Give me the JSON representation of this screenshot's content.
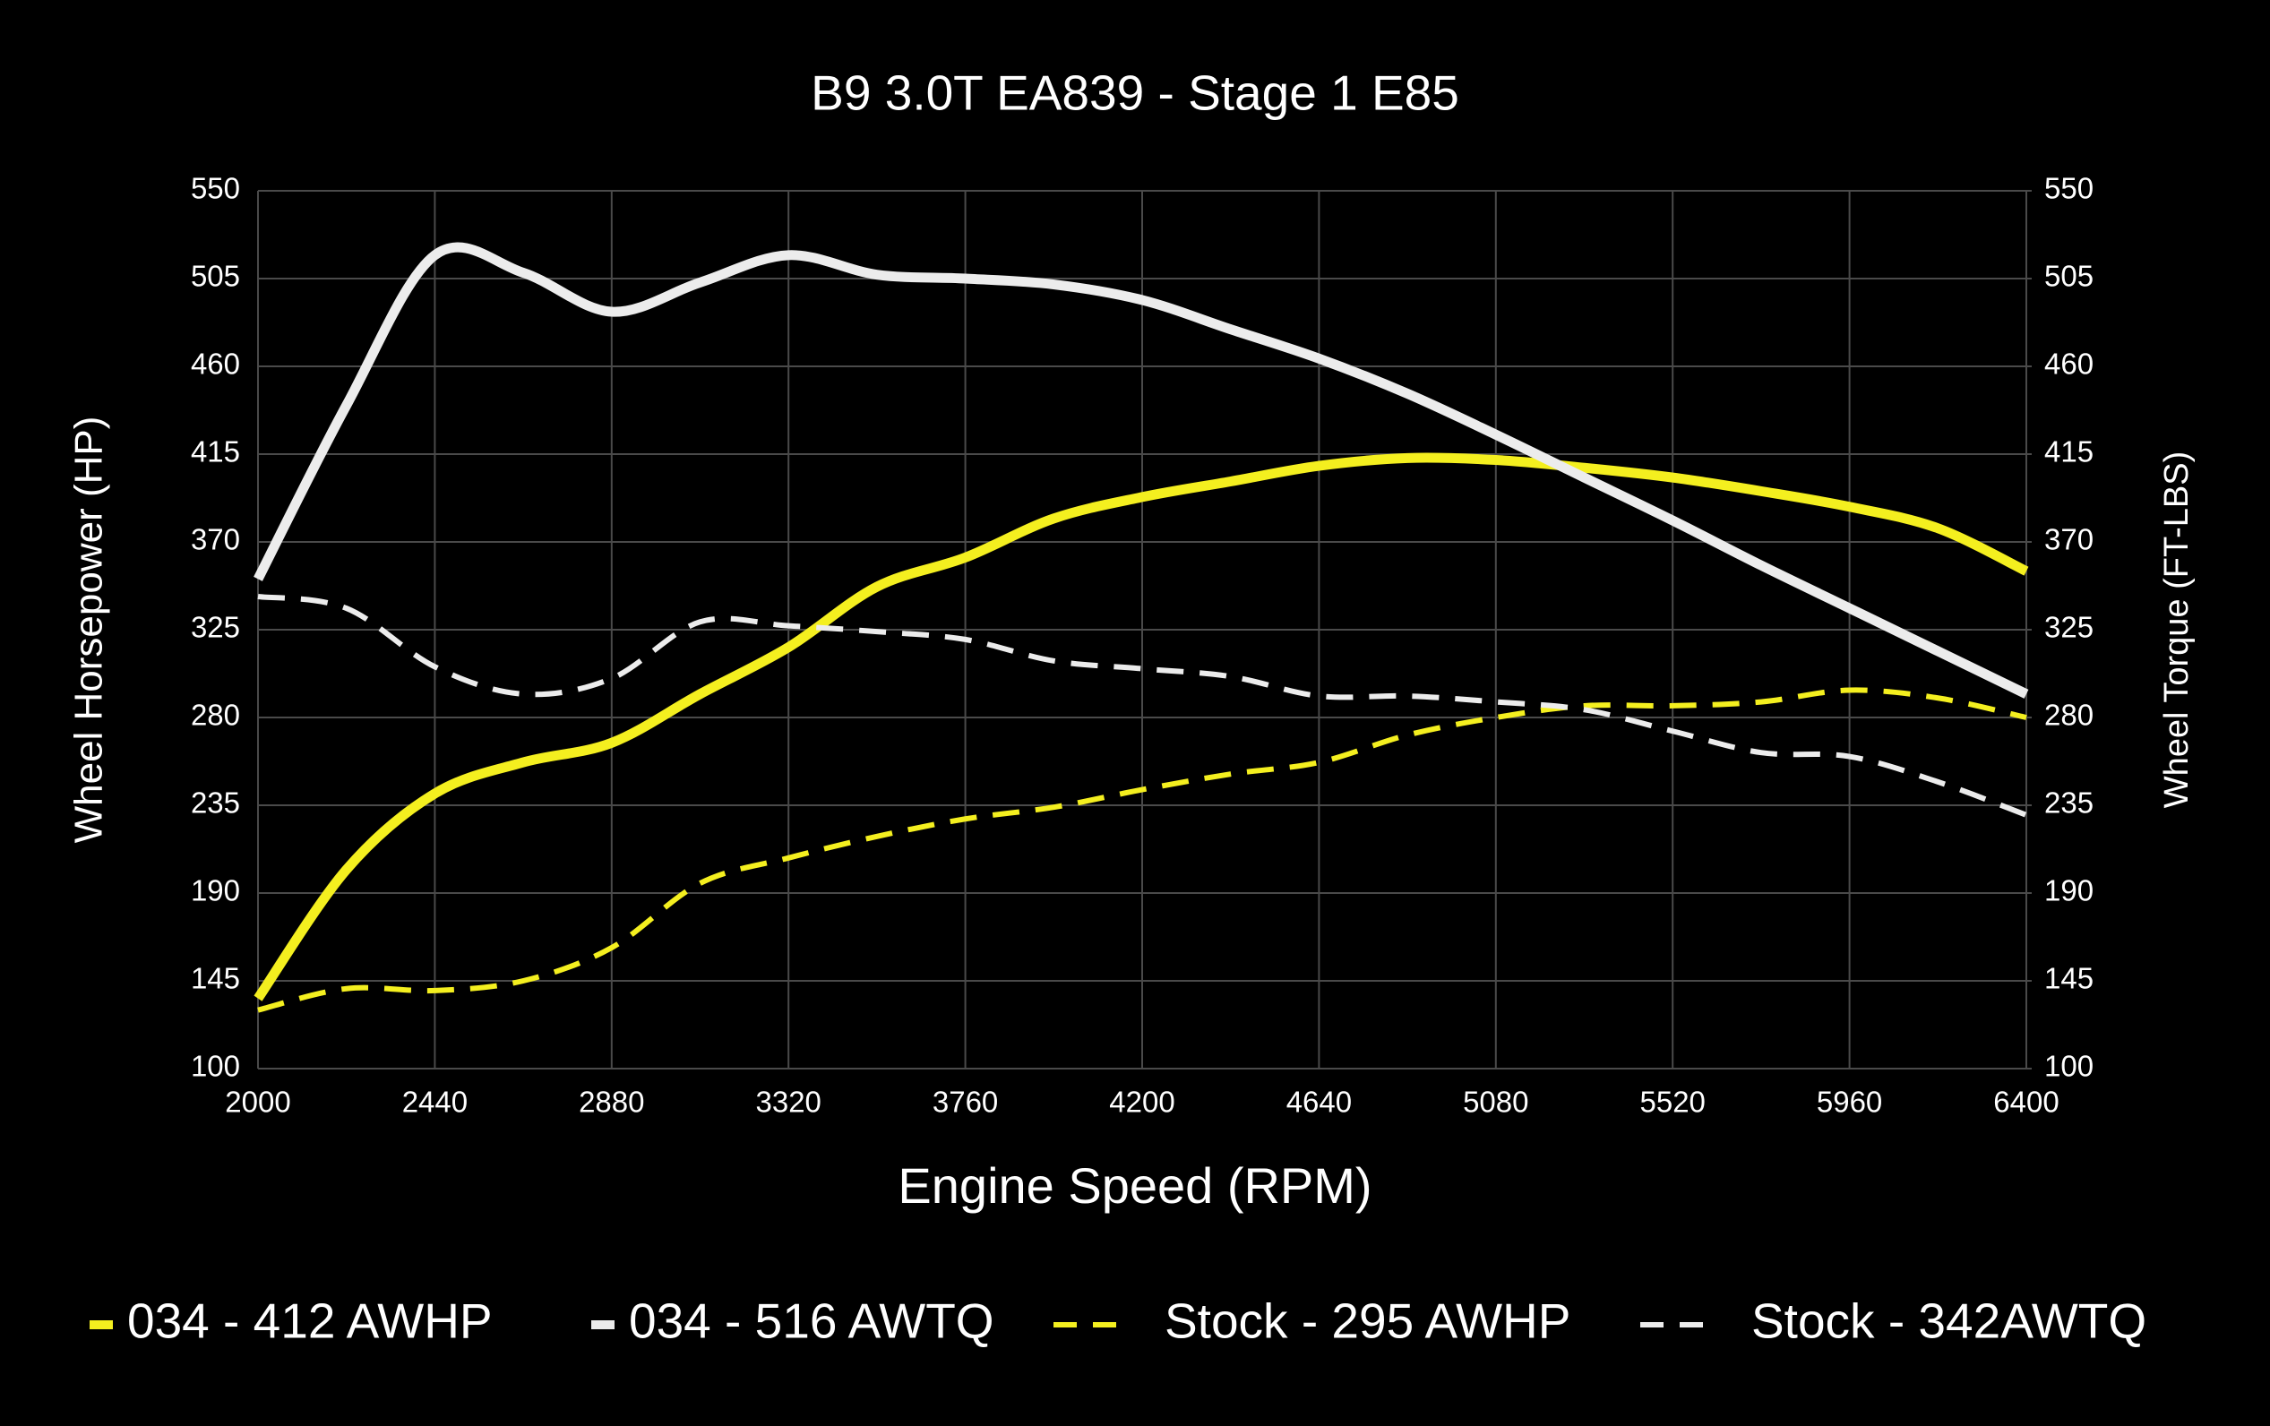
{
  "chart_data": {
    "type": "line",
    "title": "B9 3.0T EA839 - Stage 1 E85",
    "x_label": "Engine Speed (RPM)",
    "y_label": "Wheel Horsepower (HP)",
    "y2_label": "Wheel Torque (FT-LBS)",
    "x": [
      2000,
      2220,
      2440,
      2660,
      2880,
      3100,
      3320,
      3540,
      3760,
      3980,
      4200,
      4420,
      4640,
      4860,
      5080,
      5300,
      5520,
      5740,
      5960,
      6180,
      6400
    ],
    "xlim": [
      2000,
      6400
    ],
    "xticks": [
      2000,
      2440,
      2880,
      3320,
      3760,
      4200,
      4640,
      5080,
      5520,
      5960,
      6400
    ],
    "ylim": [
      100,
      550
    ],
    "yticks": [
      100,
      145,
      190,
      235,
      280,
      325,
      370,
      415,
      460,
      505,
      550
    ],
    "y2lim": [
      100,
      550
    ],
    "y2ticks": [
      100,
      145,
      190,
      235,
      280,
      325,
      370,
      415,
      460,
      505,
      550
    ],
    "grid": true,
    "legend": "bottom",
    "series": [
      {
        "name": "034 - 412 AWHP",
        "color": "#f4ef1f",
        "dashed": false,
        "values": [
          136,
          202,
          241,
          257,
          267,
          292,
          316,
          347,
          362,
          382,
          393,
          401,
          409,
          413,
          412,
          408,
          403,
          396,
          388,
          377,
          355
        ]
      },
      {
        "name": "034 - 516 AWTQ",
        "color": "#ececec",
        "dashed": false,
        "axis": "y2",
        "values": [
          351,
          440,
          517,
          508,
          488,
          503,
          517,
          507,
          505,
          502,
          494,
          479,
          464,
          446,
          425,
          403,
          381,
          358,
          336,
          314,
          292
        ]
      },
      {
        "name": "Stock - 295 AWHP",
        "color": "#f4ef1f",
        "dashed": true,
        "values": [
          130,
          141,
          140,
          145,
          162,
          195,
          208,
          219,
          228,
          234,
          243,
          251,
          257,
          271,
          280,
          286,
          286,
          288,
          294,
          290,
          280
        ]
      },
      {
        "name": "Stock - 342AWTQ",
        "color": "#ececec",
        "dashed": true,
        "axis": "y2",
        "values": [
          342,
          336,
          306,
          292,
          300,
          329,
          327,
          324,
          320,
          309,
          305,
          301,
          291,
          291,
          288,
          284,
          273,
          262,
          260,
          247,
          230
        ]
      }
    ]
  }
}
